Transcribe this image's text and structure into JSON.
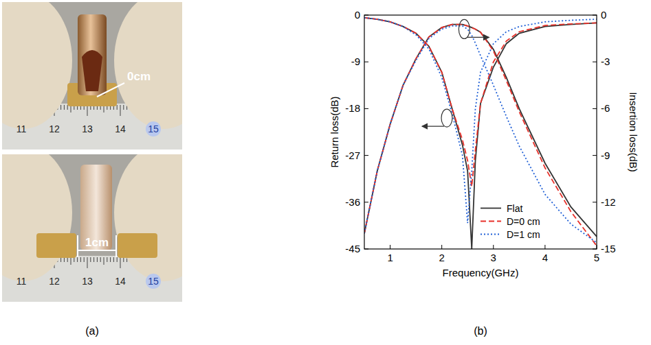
{
  "figure": {
    "panel_a": {
      "label": "(a)",
      "photos": [
        {
          "annotation": "0cm",
          "ruler_labels": [
            "11",
            "12",
            "13",
            "14",
            "15"
          ]
        },
        {
          "annotation": "1cm",
          "ruler_labels": [
            "11",
            "12",
            "13",
            "14",
            "15"
          ]
        }
      ]
    },
    "panel_b": {
      "label": "(b)"
    }
  },
  "chart_data": {
    "type": "line",
    "x_label": "Frequency(GHz)",
    "y_label": "Return loss(dB)",
    "y2_label": "Insertion loss(dB)",
    "x": [
      0.5,
      0.75,
      1,
      1.25,
      1.5,
      1.75,
      2,
      2.2,
      2.4,
      2.5,
      2.58,
      2.65,
      2.75,
      3,
      3.25,
      3.5,
      4,
      4.5,
      5
    ],
    "xlim": [
      0.5,
      5
    ],
    "xticks": [
      1,
      2,
      3,
      4,
      5
    ],
    "ylim": [
      -45,
      0
    ],
    "yticks": [
      -45,
      -36,
      -27,
      -18,
      -9,
      0
    ],
    "y2lim": [
      -15,
      0
    ],
    "y2ticks": [
      -15,
      -12,
      -9,
      -6,
      -3,
      0
    ],
    "grid": false,
    "legend": "lower right",
    "series": [
      {
        "name": "Flat",
        "color": "#333333",
        "line_style": "solid",
        "values": [
          -0.5,
          -0.8,
          -1.3,
          -2.2,
          -3.5,
          -6,
          -11,
          -18,
          -25,
          -30,
          -45,
          -28,
          -17,
          -10,
          -5.5,
          -3.5,
          -2.2,
          -1.8,
          -1.5
        ]
      },
      {
        "name": "D=0 cm",
        "color": "#e8312a",
        "line_style": "dashed",
        "values": [
          -0.5,
          -0.8,
          -1.3,
          -2.2,
          -3.5,
          -6,
          -11,
          -18,
          -24,
          -28,
          -33,
          -26,
          -17,
          -9,
          -5,
          -3.2,
          -2,
          -1.7,
          -1.5
        ]
      },
      {
        "name": "D=1 cm",
        "color": "#1f5fd6",
        "line_style": "dotted",
        "values": [
          -0.5,
          -0.8,
          -1.3,
          -2.2,
          -3.8,
          -6.5,
          -12,
          -19,
          -27,
          -40,
          -30,
          -18,
          -11,
          -5.5,
          -3.2,
          -2.2,
          -1.3,
          -1,
          -0.8
        ]
      },
      {
        "name": "Flat",
        "color": "#333333",
        "line_style": "solid",
        "axis": "y2",
        "values": [
          -14,
          -10,
          -7,
          -4.5,
          -2.8,
          -1.4,
          -0.8,
          -0.6,
          -0.6,
          -0.7,
          -0.8,
          -0.9,
          -1.1,
          -2.2,
          -4,
          -6,
          -9.5,
          -12.3,
          -14.2
        ]
      },
      {
        "name": "D=0 cm",
        "color": "#e8312a",
        "line_style": "dashed",
        "axis": "y2",
        "values": [
          -14,
          -10,
          -7,
          -4.5,
          -2.8,
          -1.4,
          -0.8,
          -0.6,
          -0.6,
          -0.7,
          -0.8,
          -0.9,
          -1.1,
          -2.3,
          -4.2,
          -6.2,
          -9.8,
          -12.6,
          -14.8
        ]
      },
      {
        "name": "D=1 cm",
        "color": "#1f5fd6",
        "line_style": "dotted",
        "axis": "y2",
        "values": [
          -14,
          -10,
          -7,
          -4.5,
          -2.9,
          -1.5,
          -0.9,
          -0.7,
          -0.7,
          -0.9,
          -1.3,
          -1.8,
          -2.6,
          -4.5,
          -6.5,
          -8.4,
          -11.5,
          -13.4,
          -14.6
        ]
      }
    ]
  }
}
